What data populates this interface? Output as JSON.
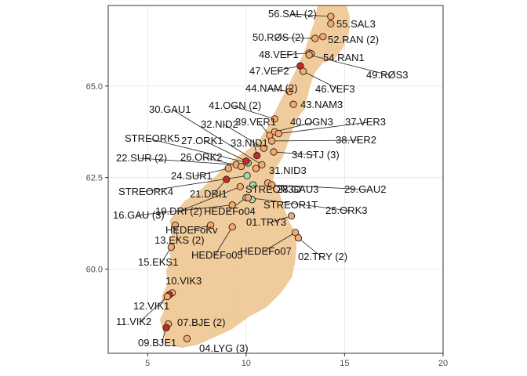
{
  "chart_data": {
    "type": "scatter",
    "xlim": [
      3,
      20
    ],
    "ylim": [
      57.7,
      67.2
    ],
    "x_ticks": [
      5,
      10,
      15,
      20
    ],
    "y_ticks": [
      60.0,
      62.5,
      65.0
    ],
    "x_tick_labels": [
      "5",
      "10",
      "15",
      "20"
    ],
    "y_tick_labels": [
      "60.0",
      "62.5",
      "65.0"
    ],
    "grid": true,
    "legend": "none",
    "colors": {
      "land": "#f0cb9b",
      "panel_border": "#333333",
      "orange": "#f7a96b",
      "red": "#c82828",
      "green": "#a6d8a8"
    },
    "points": [
      {
        "label": "56.SAL (2)",
        "lon": 14.3,
        "lat": 66.9,
        "color": "orange"
      },
      {
        "label": "55.SAL3",
        "lon": 14.3,
        "lat": 66.7,
        "color": "orange"
      },
      {
        "label": "50.RØS (2)",
        "lon": 13.5,
        "lat": 66.3,
        "color": "orange"
      },
      {
        "label": "52.RAN (2)",
        "lon": 13.9,
        "lat": 66.35,
        "color": "orange"
      },
      {
        "label": "48.VEF1",
        "lon": 13.2,
        "lat": 65.9,
        "color": "orange"
      },
      {
        "label": "54.RAN1",
        "lon": 13.3,
        "lat": 65.88,
        "color": "orange"
      },
      {
        "label": "49.RØS3",
        "lon": 13.2,
        "lat": 65.85,
        "color": "orange"
      },
      {
        "label": "47.VEF2",
        "lon": 12.75,
        "lat": 65.55,
        "color": "red"
      },
      {
        "label": "46.VEF3",
        "lon": 12.9,
        "lat": 65.4,
        "color": "orange"
      },
      {
        "label": "44.NAM (2)",
        "lon": 12.2,
        "lat": 64.85,
        "color": "orange"
      },
      {
        "label": "43.NAM3",
        "lon": 12.4,
        "lat": 64.5,
        "color": "orange"
      },
      {
        "label": "41.OGN (2)",
        "lon": 11.45,
        "lat": 64.1,
        "color": "orange"
      },
      {
        "label": "30.GAU1",
        "lon": 10.8,
        "lat": 62.85,
        "color": "orange"
      },
      {
        "label": "32.NID2",
        "lon": 10.9,
        "lat": 63.3,
        "color": "orange"
      },
      {
        "label": "39.VER1",
        "lon": 11.2,
        "lat": 63.65,
        "color": "orange"
      },
      {
        "label": "40.OGN3",
        "lon": 11.45,
        "lat": 63.75,
        "color": "orange"
      },
      {
        "label": "37.VER3",
        "lon": 11.65,
        "lat": 63.7,
        "color": "orange"
      },
      {
        "label": "38.VER2",
        "lon": 11.3,
        "lat": 63.5,
        "color": "orange"
      },
      {
        "label": "STREORK5",
        "lon": 10.1,
        "lat": 62.9,
        "color": "green"
      },
      {
        "label": "27.ORK1",
        "lon": 10.0,
        "lat": 62.95,
        "color": "red"
      },
      {
        "label": "33.NID1",
        "lon": 10.55,
        "lat": 63.1,
        "color": "red"
      },
      {
        "label": "34.STJ (3)",
        "lon": 11.4,
        "lat": 63.2,
        "color": "orange"
      },
      {
        "label": "22.SUR (2)",
        "lon": 9.5,
        "lat": 62.85,
        "color": "orange"
      },
      {
        "label": "26.ORK2",
        "lon": 9.75,
        "lat": 62.8,
        "color": "orange"
      },
      {
        "label": "24.SUR1",
        "lon": 9.1,
        "lat": 62.75,
        "color": "orange"
      },
      {
        "label": "31.NID3",
        "lon": 10.5,
        "lat": 62.75,
        "color": "orange"
      },
      {
        "label": "STREORK4",
        "lon": 10.05,
        "lat": 62.55,
        "color": "green"
      },
      {
        "label": "21.DRI1",
        "lon": 9.0,
        "lat": 62.45,
        "color": "red"
      },
      {
        "label": "STREOR3D",
        "lon": 10.35,
        "lat": 62.3,
        "color": "green"
      },
      {
        "label": "28.GAU3",
        "lon": 11.1,
        "lat": 62.35,
        "color": "orange"
      },
      {
        "label": "29.GAU2",
        "lon": 11.3,
        "lat": 62.3,
        "color": "orange"
      },
      {
        "label": "19.DRI (2)",
        "lon": 9.7,
        "lat": 62.25,
        "color": "orange"
      },
      {
        "label": "HEDEFo04",
        "lon": 10.0,
        "lat": 61.95,
        "color": "green"
      },
      {
        "label": "STREOR1T",
        "lon": 10.3,
        "lat": 61.9,
        "color": "green"
      },
      {
        "label": "25.ORK3",
        "lon": 10.1,
        "lat": 61.95,
        "color": "orange"
      },
      {
        "label": "16.GAU (3)",
        "lon": 9.3,
        "lat": 61.75,
        "color": "orange"
      },
      {
        "label": "01.TRY3",
        "lon": 12.3,
        "lat": 61.45,
        "color": "orange"
      },
      {
        "label": "HEDEFoKv",
        "lon": 8.2,
        "lat": 61.2,
        "color": "orange"
      },
      {
        "label": "13.EKS (2)",
        "lon": 6.4,
        "lat": 61.2,
        "color": "orange"
      },
      {
        "label": "HEDEFo05",
        "lon": 9.3,
        "lat": 61.15,
        "color": "orange"
      },
      {
        "label": "HEDEFo07",
        "lon": 12.5,
        "lat": 61.0,
        "color": "orange"
      },
      {
        "label": "02.TRY (2)",
        "lon": 12.65,
        "lat": 60.85,
        "color": "orange"
      },
      {
        "label": "15.EKS1",
        "lon": 6.2,
        "lat": 60.6,
        "color": "orange"
      },
      {
        "label": "10.VIK3",
        "lon": 6.25,
        "lat": 59.35,
        "color": "orange"
      },
      {
        "label": "12.VIK1",
        "lon": 6.1,
        "lat": 59.3,
        "color": "red"
      },
      {
        "label": "11.VIK2",
        "lon": 6.0,
        "lat": 59.25,
        "color": "orange"
      },
      {
        "label": "07.BJE (2)",
        "lon": 6.05,
        "lat": 58.5,
        "color": "orange"
      },
      {
        "label": "09.BJE1",
        "lon": 5.95,
        "lat": 58.4,
        "color": "red"
      },
      {
        "label": "04.LYG (3)",
        "lon": 7.0,
        "lat": 58.1,
        "color": "orange"
      }
    ]
  }
}
